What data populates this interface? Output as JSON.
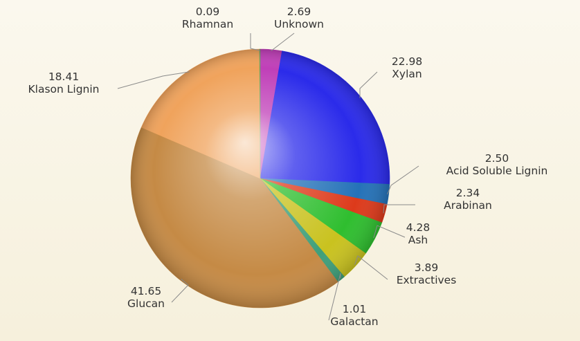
{
  "chart_data": {
    "type": "pie",
    "title": "",
    "slices": [
      {
        "label": "Unknown",
        "value": 2.69,
        "value_text": "2.69",
        "color": "#c03fb8"
      },
      {
        "label": "Xylan",
        "value": 22.98,
        "value_text": "22.98",
        "color": "#2b2bea"
      },
      {
        "label": "Acid Soluble Lignin",
        "value": 2.5,
        "value_text": "2.50",
        "color": "#2572b8"
      },
      {
        "label": "Arabinan",
        "value": 2.34,
        "value_text": "2.34",
        "color": "#dd3a1b"
      },
      {
        "label": "Ash",
        "value": 4.28,
        "value_text": "4.28",
        "color": "#2fbe2f"
      },
      {
        "label": "Extractives",
        "value": 3.89,
        "value_text": "3.89",
        "color": "#c9c21f"
      },
      {
        "label": "Galactan",
        "value": 1.01,
        "value_text": "1.01",
        "color": "#3f9f7a"
      },
      {
        "label": "Glucan",
        "value": 41.65,
        "value_text": "41.65",
        "color": "#c58a45"
      },
      {
        "label": "Klason Lignin",
        "value": 18.41,
        "value_text": "18.41",
        "color": "#f0a35c"
      },
      {
        "label": "Rhamnan",
        "value": 0.09,
        "value_text": "0.09",
        "color": "#6fa060"
      }
    ]
  }
}
